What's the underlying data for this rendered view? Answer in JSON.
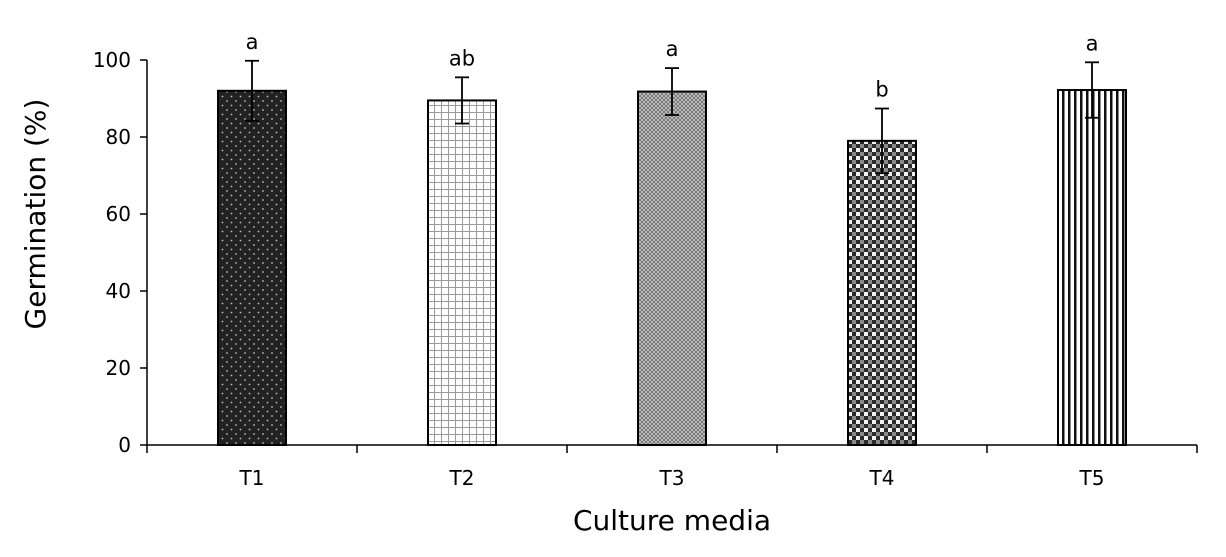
{
  "chart_data": {
    "type": "bar",
    "title": "",
    "xlabel": "Culture media",
    "ylabel": "Germination (%)",
    "ylim": [
      0,
      100
    ],
    "yticks": [
      0,
      20,
      40,
      60,
      80,
      100
    ],
    "grid": false,
    "legend": "none",
    "categories": [
      "T1",
      "T2",
      "T3",
      "T4",
      "T5"
    ],
    "values": [
      92,
      89.5,
      91.8,
      79,
      92.2
    ],
    "error": [
      7.8,
      6,
      6.1,
      8.4,
      7.2
    ],
    "significance": [
      "a",
      "ab",
      "a",
      "b",
      "a"
    ],
    "patterns": [
      "dark-dotted",
      "grid",
      "fine-crosshatch",
      "checkerboard",
      "vertical-stripes"
    ],
    "colors": {
      "axis": "#000000",
      "bar_stroke": "#000000",
      "dark_fill": "#222222"
    }
  }
}
